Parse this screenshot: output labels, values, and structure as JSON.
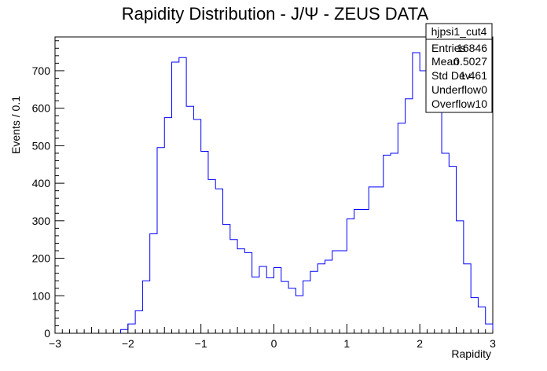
{
  "chart_data": {
    "type": "bar",
    "title": "Rapidity Distribution - J/Ψ - ZEUS DATA",
    "xlabel": "Rapidity",
    "ylabel": "Events / 0.1",
    "xlim": [
      -3,
      3
    ],
    "ylim": [
      0,
      790
    ],
    "bin_width": 0.1,
    "x_ticks": [
      -3,
      -2,
      -1,
      0,
      1,
      2,
      3
    ],
    "x_tick_labels": [
      "−3",
      "−2",
      "−1",
      "0",
      "1",
      "2",
      "3"
    ],
    "y_ticks": [
      0,
      100,
      200,
      300,
      400,
      500,
      600,
      700
    ],
    "y_tick_labels": [
      "0",
      "100",
      "200",
      "300",
      "400",
      "500",
      "600",
      "700"
    ],
    "grid": false,
    "line_color": "#0000ff",
    "bin_edges": [
      -2.1,
      -2.0,
      -1.9,
      -1.8,
      -1.7,
      -1.6,
      -1.5,
      -1.4,
      -1.3,
      -1.2,
      -1.1,
      -1.0,
      -0.9,
      -0.8,
      -0.7,
      -0.6,
      -0.5,
      -0.4,
      -0.3,
      -0.2,
      -0.1,
      0.0,
      0.1,
      0.2,
      0.3,
      0.4,
      0.5,
      0.6,
      0.7,
      0.8,
      0.9,
      1.0,
      1.1,
      1.2,
      1.3,
      1.4,
      1.5,
      1.6,
      1.7,
      1.8,
      1.9,
      2.0,
      2.1,
      2.2,
      2.3,
      2.4,
      2.5,
      2.6,
      2.7,
      2.8,
      2.9,
      3.0
    ],
    "values": [
      10,
      25,
      60,
      140,
      265,
      495,
      575,
      723,
      735,
      605,
      570,
      485,
      410,
      385,
      290,
      250,
      225,
      215,
      150,
      178,
      148,
      175,
      138,
      120,
      100,
      140,
      165,
      185,
      195,
      220,
      220,
      305,
      330,
      330,
      390,
      390,
      475,
      480,
      560,
      625,
      748,
      700,
      680,
      720,
      480,
      445,
      300,
      185,
      95,
      70,
      25,
      10
    ],
    "stats_box": {
      "title": "hjpsi1_cut4",
      "rows": [
        {
          "label": "Entries",
          "value": "16846"
        },
        {
          "label": "Mean",
          "value": "0.5027"
        },
        {
          "label": "Std Dev",
          "value": "1.461"
        },
        {
          "label": "Underflow",
          "value": "0"
        },
        {
          "label": "Overflow",
          "value": "10"
        }
      ]
    }
  }
}
